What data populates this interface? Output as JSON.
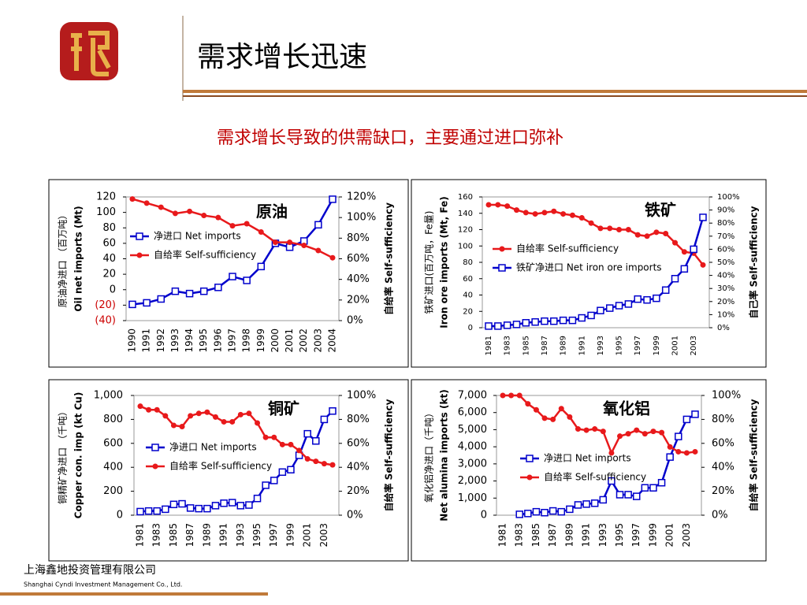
{
  "title": "需求增长迅速",
  "subtitle": "需求增长导致的供需缺口，主要通过进口弥补",
  "footer": {
    "company": "上海鑫地投资管理有限公司",
    "company_en": "Shanghai Cyndi Investment Management Co., Ltd."
  },
  "chart_data": [
    {
      "type": "line",
      "title": "原油",
      "ylabel": [
        "原油净进口 （百万吨）",
        "Oil net imports (Mt)"
      ],
      "y2label": "自给率 Self-sufficiency",
      "categories": [
        "1990",
        "1991",
        "1992",
        "1993",
        "1994",
        "1995",
        "1996",
        "1997",
        "1998",
        "1999",
        "2000",
        "2001",
        "2002",
        "2003",
        "2004"
      ],
      "series": [
        {
          "name": "净进口 Net imports",
          "color": "#0000cc",
          "marker": "square",
          "axis": "y",
          "values": [
            -19,
            -17,
            -12,
            -2,
            -5,
            -2,
            3,
            17,
            12,
            30,
            60,
            55,
            63,
            84,
            117
          ]
        },
        {
          "name": "自给率 Self-sufficiency",
          "color": "#e8191b",
          "marker": "circle",
          "axis": "y2",
          "values": [
            118,
            114,
            110,
            104,
            106,
            102,
            100,
            92,
            94,
            86,
            76,
            76,
            73,
            68,
            61
          ]
        }
      ],
      "ylim": [
        -40,
        120
      ],
      "yticks": [
        120,
        100,
        80,
        60,
        40,
        20,
        0,
        {
          "value": -20,
          "label": "(20)"
        },
        {
          "value": -40,
          "label": "(40)"
        }
      ],
      "y2lim": [
        0,
        120
      ],
      "y2ticks": [
        {
          "value": 120,
          "label": "120%"
        },
        {
          "value": 100,
          "label": "100%"
        },
        {
          "value": 80,
          "label": "80%"
        },
        {
          "value": 60,
          "label": "60%"
        },
        {
          "value": 40,
          "label": "40%"
        },
        {
          "value": 20,
          "label": "20%"
        },
        {
          "value": 0,
          "label": "0%"
        }
      ]
    },
    {
      "type": "line",
      "title": "铁矿",
      "ylabel": [
        "铁矿进口(百万吨，Fe量)",
        "Iron ore imports (Mt, Fe)"
      ],
      "y2label": "自己率 Self-sufficiency",
      "categories": [
        "1981",
        null,
        "1983",
        null,
        "1985",
        null,
        "1987",
        null,
        "1989",
        null,
        "1991",
        null,
        "1993",
        null,
        "1995",
        null,
        "1997",
        null,
        "1999",
        null,
        "2001",
        null,
        "2003",
        null
      ],
      "series": [
        {
          "name": "自给率 Self-sufficiency",
          "color": "#e8191b",
          "marker": "circle",
          "axis": "y2",
          "values": [
            94,
            94,
            93,
            90,
            88,
            87,
            88,
            89,
            87,
            86,
            84,
            80,
            76,
            76,
            75,
            75,
            71,
            70,
            73,
            72,
            65,
            58,
            57,
            48
          ]
        },
        {
          "name": "铁矿净进口 Net iron ore imports",
          "color": "#0000cc",
          "marker": "square",
          "axis": "y",
          "values": [
            2,
            2,
            3,
            4,
            6,
            7,
            8,
            8,
            9,
            9,
            12,
            15,
            21,
            24,
            27,
            29,
            35,
            34,
            36,
            46,
            60,
            72,
            96,
            135
          ]
        }
      ],
      "ylim": [
        0,
        160
      ],
      "yticks": [
        160,
        140,
        120,
        100,
        80,
        60,
        40,
        20,
        0
      ],
      "y2lim": [
        0,
        100
      ],
      "y2ticks": [
        {
          "value": 100,
          "label": "100%"
        },
        {
          "value": 90,
          "label": "90%"
        },
        {
          "value": 80,
          "label": "80%"
        },
        {
          "value": 70,
          "label": "70%"
        },
        {
          "value": 60,
          "label": "60%"
        },
        {
          "value": 50,
          "label": "50%"
        },
        {
          "value": 40,
          "label": "40%"
        },
        {
          "value": 30,
          "label": "30%"
        },
        {
          "value": 20,
          "label": "20%"
        },
        {
          "value": 10,
          "label": "10%"
        },
        {
          "value": 0,
          "label": "0%"
        }
      ]
    },
    {
      "type": "line",
      "title": "铜矿",
      "ylabel": [
        "铜精矿净进口 （千吨）",
        "Copper con. imp (kt Cu)"
      ],
      "y2label": "自给率 Self-sufficiency",
      "categories": [
        "1981",
        null,
        "1983",
        null,
        "1985",
        null,
        "1987",
        null,
        "1989",
        null,
        "1991",
        null,
        "1993",
        null,
        "1995",
        null,
        "1997",
        null,
        "1999",
        null,
        "2001",
        null,
        "2003",
        null
      ],
      "series": [
        {
          "name": "净进口 Net imports",
          "color": "#0000cc",
          "marker": "square",
          "axis": "y",
          "values": [
            30,
            35,
            35,
            50,
            90,
            95,
            60,
            55,
            55,
            80,
            100,
            105,
            80,
            85,
            140,
            250,
            290,
            360,
            380,
            500,
            680,
            620,
            800,
            870
          ]
        },
        {
          "name": "自给率 Self-sufficiency",
          "color": "#e8191b",
          "marker": "circle",
          "axis": "y2",
          "values": [
            91,
            88,
            88,
            83,
            75,
            74,
            83,
            85,
            86,
            82,
            78,
            78,
            84,
            85,
            77,
            65,
            65,
            59,
            59,
            54,
            47,
            45,
            43,
            42
          ]
        }
      ],
      "ylim": [
        0,
        1000
      ],
      "yticks": [
        {
          "value": 1000,
          "label": "1,000"
        },
        800,
        600,
        400,
        200,
        0
      ],
      "y2lim": [
        0,
        100
      ],
      "y2ticks": [
        {
          "value": 100,
          "label": "100%"
        },
        {
          "value": 80,
          "label": "80%"
        },
        {
          "value": 60,
          "label": "60%"
        },
        {
          "value": 40,
          "label": "40%"
        },
        {
          "value": 20,
          "label": "20%"
        },
        {
          "value": 0,
          "label": "0%"
        }
      ]
    },
    {
      "type": "line",
      "title": "氧化铝",
      "ylabel": [
        "氧化铝净进口（千吨）",
        "Net alumina imports (kt)"
      ],
      "y2label": "自给率 Self-sufficiency",
      "categories": [
        "1981",
        null,
        "1983",
        null,
        "1985",
        null,
        "1987",
        null,
        "1989",
        null,
        "1991",
        null,
        "1993",
        null,
        "1995",
        null,
        "1997",
        null,
        "1999",
        null,
        "2001",
        null,
        "2003",
        null
      ],
      "series": [
        {
          "name": "净进口 Net imports",
          "color": "#0000cc",
          "marker": "square",
          "axis": "y",
          "values": [
            null,
            null,
            50,
            100,
            200,
            150,
            250,
            200,
            350,
            600,
            650,
            700,
            900,
            2000,
            1200,
            1200,
            1100,
            1600,
            1600,
            1900,
            3400,
            4600,
            5600,
            5900
          ]
        },
        {
          "name": "自给率 Self-sufficiency",
          "color": "#e8191b",
          "marker": "circle",
          "axis": "y2",
          "values": [
            100,
            100,
            100,
            93,
            88,
            81,
            80,
            89,
            82,
            72,
            71,
            72,
            70,
            52,
            66,
            68,
            71,
            68,
            70,
            69,
            57,
            53,
            52,
            53
          ]
        }
      ],
      "ylim": [
        0,
        7000
      ],
      "yticks": [
        {
          "value": 7000,
          "label": "7,000"
        },
        {
          "value": 6000,
          "label": "6,000"
        },
        {
          "value": 5000,
          "label": "5,000"
        },
        {
          "value": 4000,
          "label": "4,000"
        },
        {
          "value": 3000,
          "label": "3,000"
        },
        {
          "value": 2000,
          "label": "2,000"
        },
        {
          "value": 1000,
          "label": "1,000"
        },
        0
      ],
      "y2lim": [
        0,
        100
      ],
      "y2ticks": [
        {
          "value": 100,
          "label": "100%"
        },
        {
          "value": 80,
          "label": "80%"
        },
        {
          "value": 60,
          "label": "60%"
        },
        {
          "value": 40,
          "label": "40%"
        },
        {
          "value": 20,
          "label": "20%"
        },
        {
          "value": 0,
          "label": "0%"
        }
      ]
    }
  ]
}
